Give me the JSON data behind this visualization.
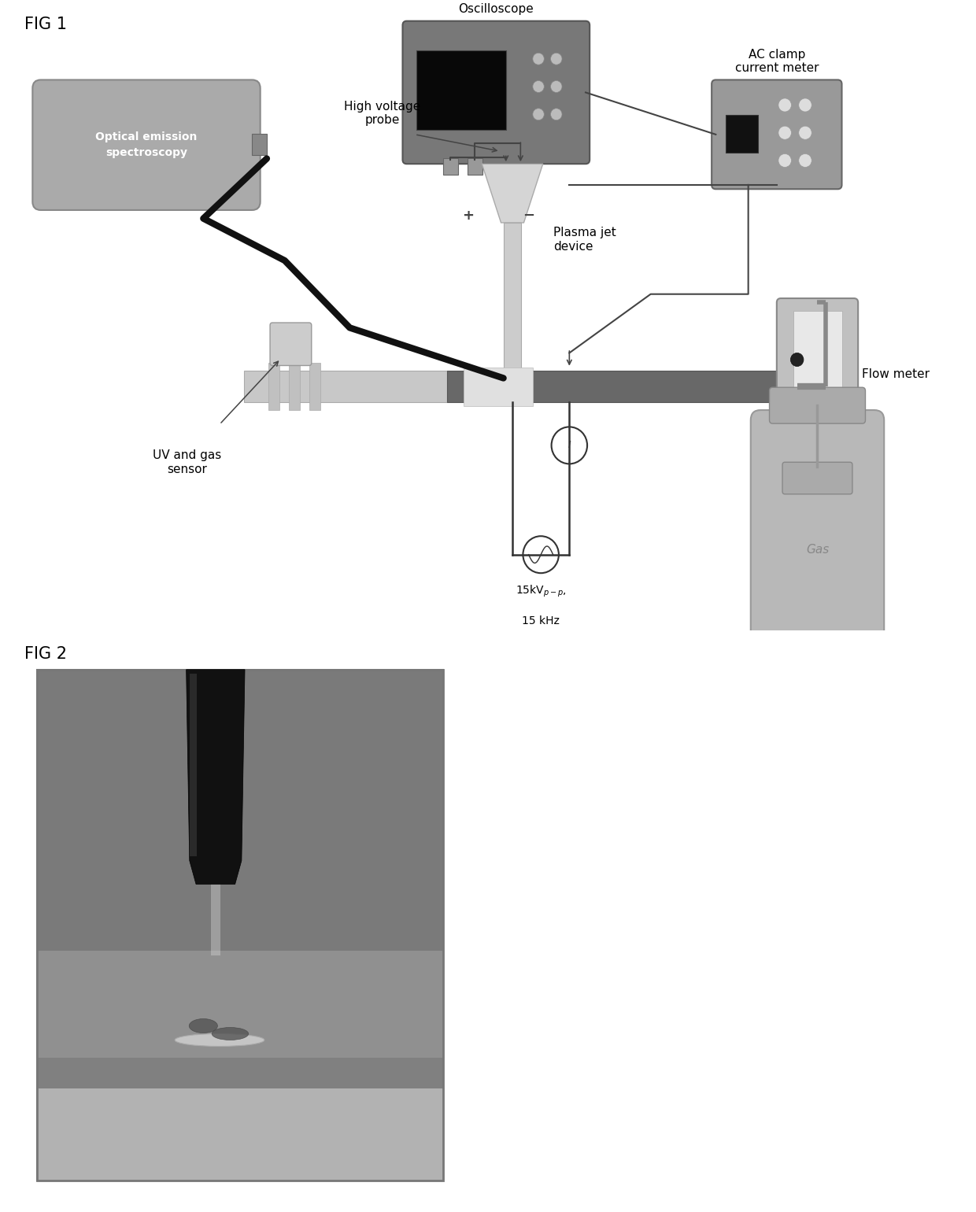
{
  "fig1_label": "FIG 1",
  "fig2_label": "FIG 2",
  "background_color": "#ffffff",
  "labels": {
    "oscilloscope": "Oscilloscope",
    "high_voltage_probe": "High voltage\nprobe",
    "ac_clamp": "AC clamp\ncurrent meter",
    "optical_emission": "Optical emission\nspectroscopy",
    "plasma_jet": "Plasma jet\ndevice",
    "uv_gas_sensor": "UV and gas\nsensor",
    "flow_meter": "Flow meter",
    "gas": "Gas",
    "plus": "+",
    "minus": "−"
  },
  "colors": {
    "oscilloscope_body": "#787878",
    "oscilloscope_screen": "#111111",
    "optical_emission_box": "#aaaaaa",
    "optical_emission_text": "#ffffff",
    "ac_clamp_body": "#999999",
    "tube_color": "#c0c0c0",
    "gas_cylinder": "#b8b8b8",
    "wire_color": "#222222",
    "label_color": "#000000",
    "dark_tube": "#6a6a6a"
  }
}
